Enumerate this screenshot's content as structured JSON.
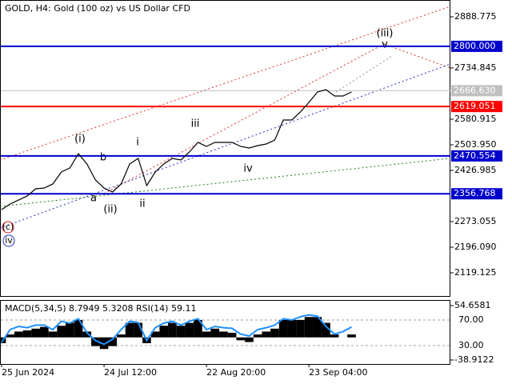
{
  "chart_data": {
    "type": "line",
    "title": "GOLD, H4:  Gold (100 oz) vs US Dollar CFD",
    "categories": [
      "25 Jun 2024",
      null,
      null,
      null,
      null,
      null,
      null,
      null,
      null,
      null,
      null,
      null,
      "24 Jul 12:00",
      null,
      null,
      null,
      null,
      null,
      null,
      null,
      null,
      null,
      null,
      null,
      "22 Aug 20:00",
      null,
      null,
      null,
      null,
      null,
      null,
      null,
      null,
      null,
      null,
      null,
      "23 Sep 04:00",
      null,
      null,
      null,
      null,
      null
    ],
    "series": [
      {
        "color": "#000000",
        "values": [
          2309.2,
          2326.0,
          2338.1,
          2350.1,
          2371.7,
          2374.1,
          2386.2,
          2422.2,
          2434.3,
          2477.5,
          2446.3,
          2398.2,
          2374.1,
          2362.1,
          2386.2,
          2446.3,
          2463.1,
          2381.3,
          2422.2,
          2446.3,
          2463.1,
          2458.3,
          2482.4,
          2511.2,
          2499.2,
          2511.2,
          2511.2,
          2511.2,
          2499.2,
          2494.4,
          2501.6,
          2506.4,
          2518.4,
          2578.6,
          2578.6,
          2602.6,
          2631.5,
          2662.7,
          2669.9,
          2650.7,
          2650.7,
          2662.7
        ]
      }
    ],
    "ylim": [
      2049.4,
      2939.3
    ],
    "yticks": [
      2888.775,
      2734.845,
      2580.915,
      {
        "value": 2503.95,
        "label": "2503.950"
      },
      2426.985,
      2273.055,
      {
        "value": 2196.09,
        "label": "2196.090"
      },
      2119.125
    ],
    "levels": [
      {
        "value": 2800,
        "label": "2800.000",
        "color": "#0000cc"
      },
      {
        "value": 2666.63,
        "label": "2666.630",
        "color": "#c0c0c0"
      },
      {
        "value": 2619.051,
        "label": "2619.051",
        "color": "#ff0000"
      },
      {
        "value": 2470.554,
        "label": "2470.554",
        "color": "#0000cc"
      },
      {
        "value": 2356.768,
        "label": "2356.768",
        "color": "#0000cc"
      }
    ],
    "annotations": [
      "(i)",
      "b",
      "a",
      "(ii)",
      "i",
      "ii",
      "iii",
      "iv",
      "(iii)",
      "v",
      "(c)",
      "iv"
    ],
    "indicator": {
      "title": "MACD(5,34,5) 8.7949 5.3208 RSI(14) 59.11",
      "ylim": [
        -38.9122,
        54.6581
      ],
      "yticks": [
        54.6581,
        -38.9122
      ],
      "rsi_ticks": [
        {
          "value": 70,
          "label": "70.00"
        },
        {
          "value": 30,
          "label": "30.00"
        }
      ],
      "histogram": [
        -10,
        5,
        10,
        12,
        15,
        18,
        10,
        20,
        25,
        30,
        10,
        -15,
        -20,
        -15,
        5,
        25,
        25,
        -10,
        10,
        20,
        25,
        20,
        25,
        30,
        10,
        15,
        10,
        8,
        -5,
        -8,
        5,
        10,
        15,
        30,
        30,
        30,
        35,
        35,
        25,
        5,
        0,
        5
      ],
      "rsi": [
        35,
        55,
        60,
        58,
        62,
        62,
        55,
        68,
        65,
        72,
        50,
        38,
        32,
        40,
        55,
        68,
        66,
        38,
        58,
        65,
        68,
        62,
        68,
        72,
        55,
        60,
        58,
        57,
        48,
        45,
        55,
        58,
        62,
        72,
        70,
        75,
        78,
        76,
        60,
        48,
        52,
        59
      ],
      "rsi_color": "#1e90ff"
    }
  }
}
